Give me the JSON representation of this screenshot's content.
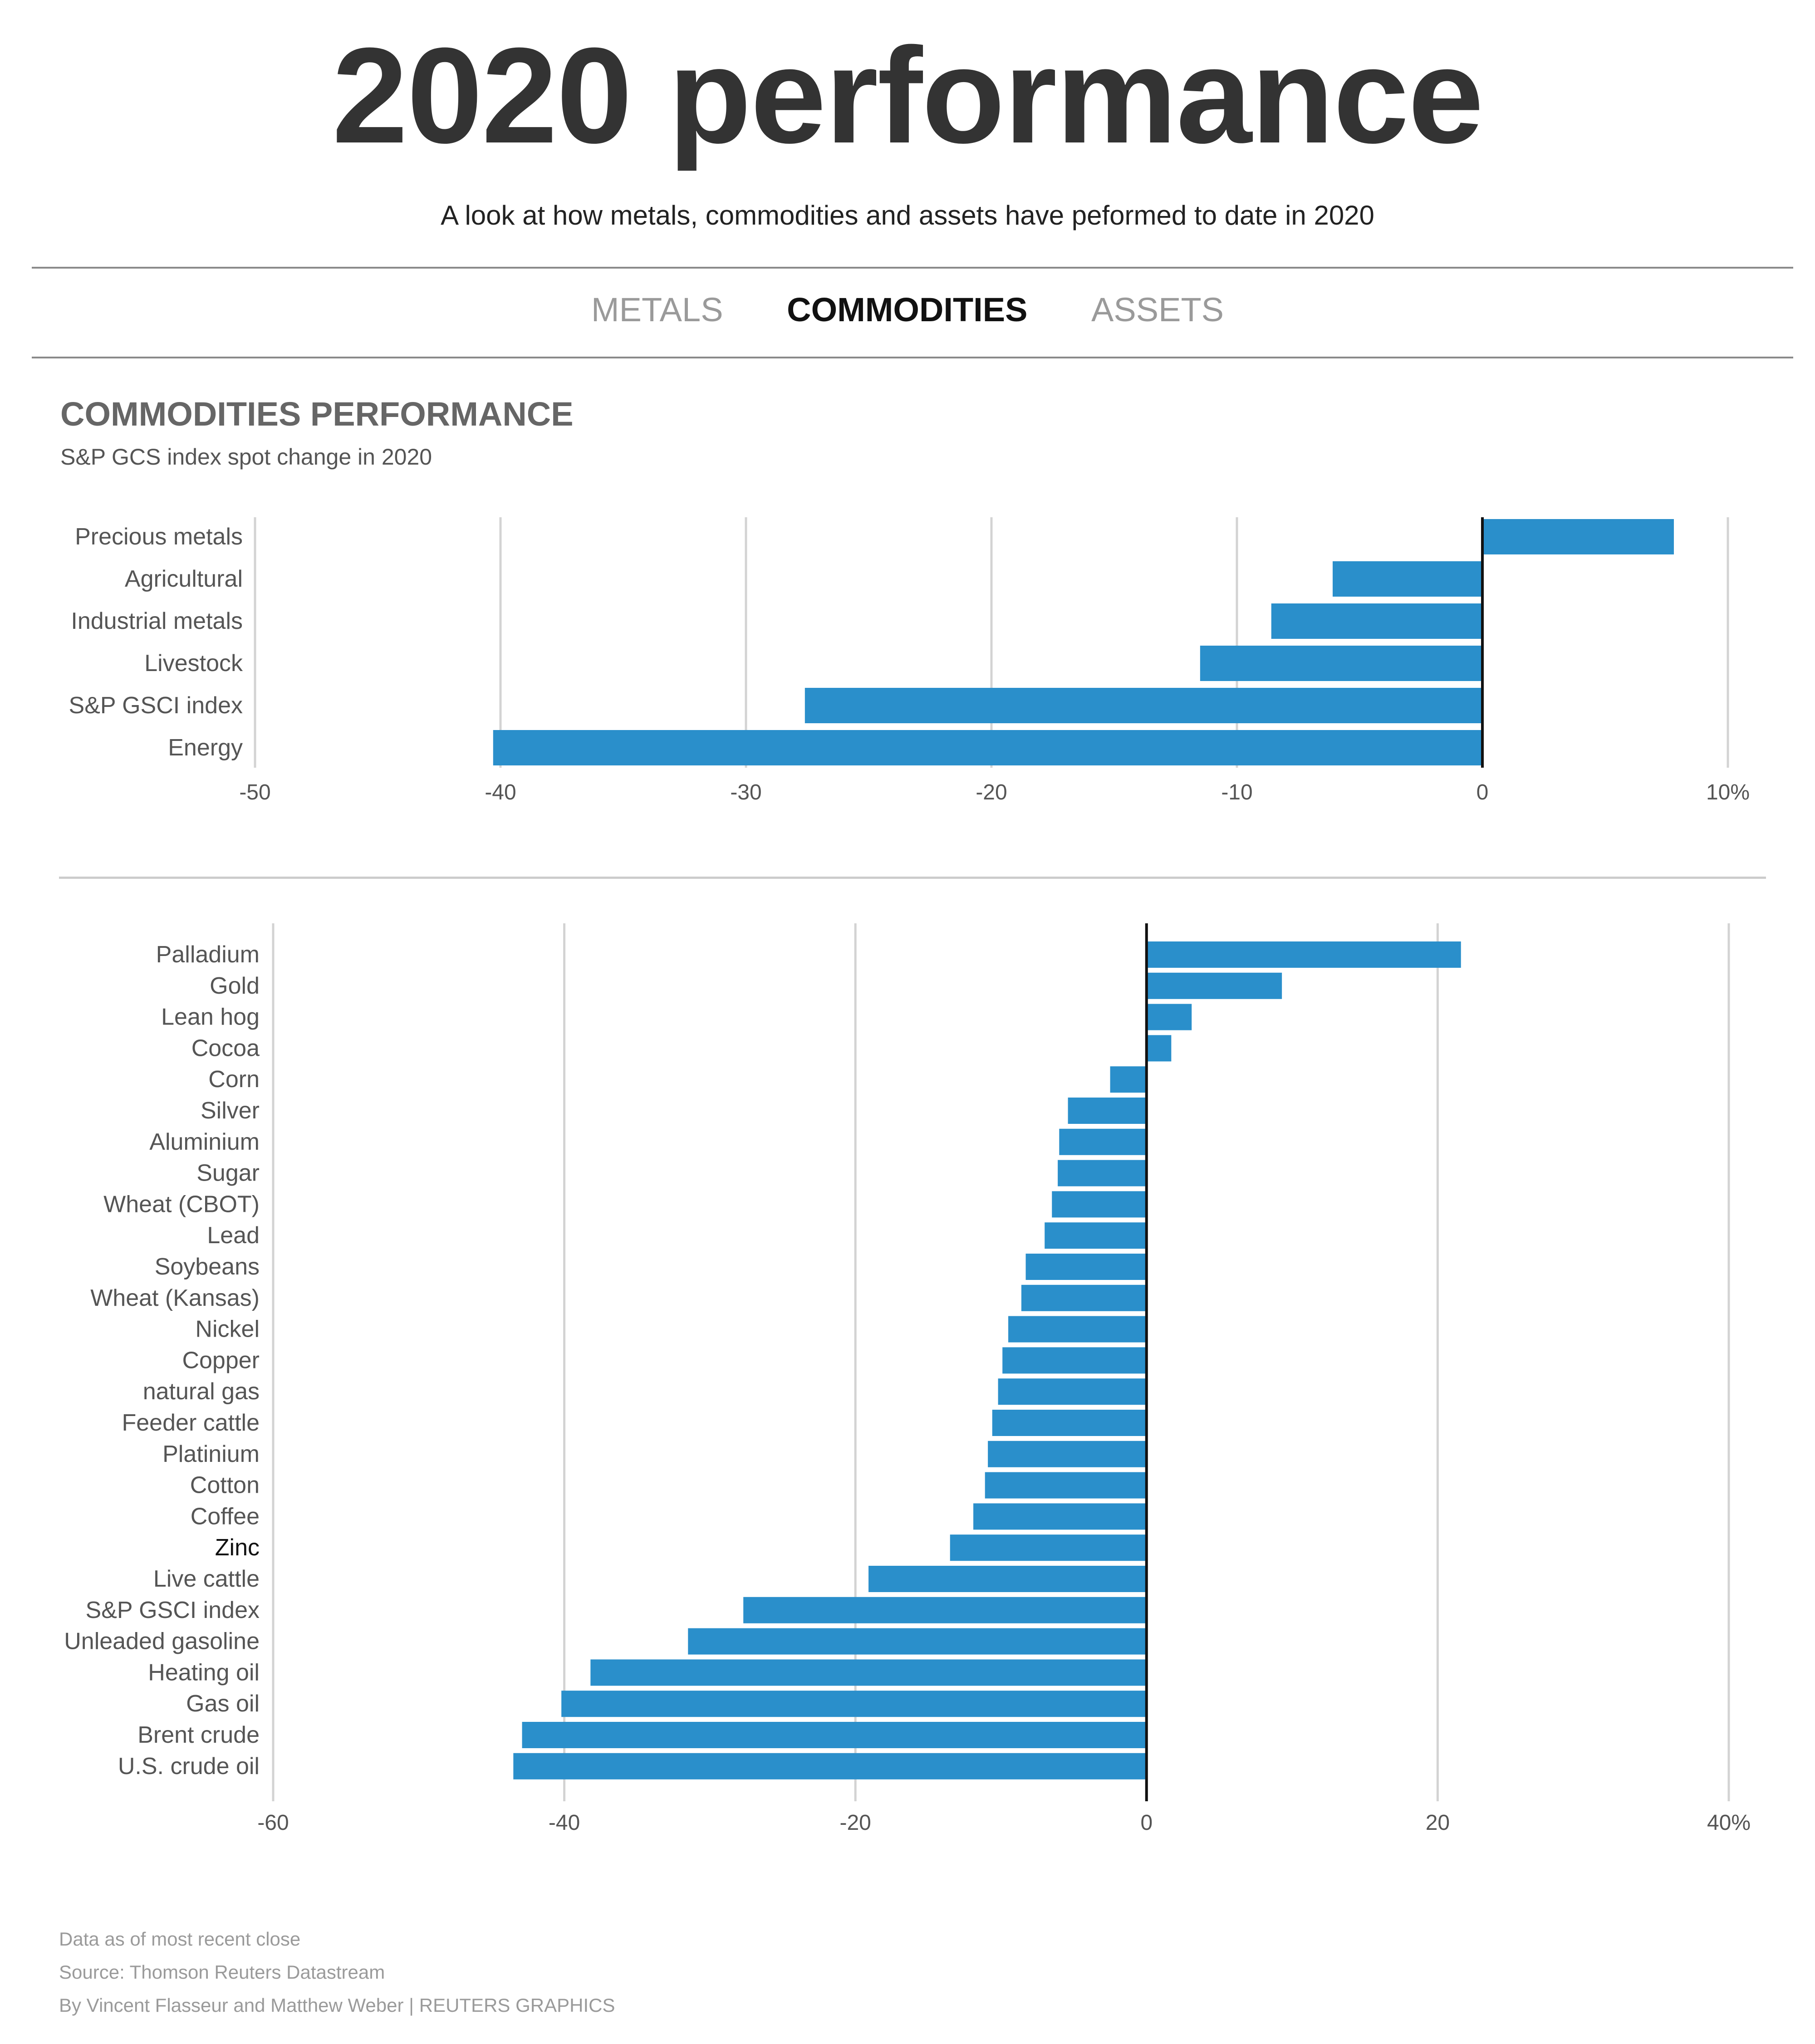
{
  "header": {
    "title": "2020 performance",
    "subtitle": "A look at how metals, commodities and assets have peformed to date in 2020"
  },
  "tabs": [
    {
      "label": "METALS",
      "active": false
    },
    {
      "label": "COMMODITIES",
      "active": true
    },
    {
      "label": "ASSETS",
      "active": false
    }
  ],
  "section": {
    "title": "COMMODITIES PERFORMANCE",
    "subtitle": "S&P GCS index spot change in 2020"
  },
  "colors": {
    "bar": "#2a8fcb",
    "gridline": "#d3d3d3",
    "zero_line": "#111111",
    "divider": "#cccccc",
    "highlight_label": "#111111"
  },
  "chart_data": [
    {
      "type": "bar",
      "orientation": "horizontal",
      "categories": [
        "Precious metals",
        "Agricultural",
        "Industrial metals",
        "Livestock",
        "S&P GSCI index",
        "Energy"
      ],
      "values": [
        7.8,
        -6.1,
        -8.6,
        -11.5,
        -27.6,
        -40.3
      ],
      "xlim": [
        -50,
        10
      ],
      "ticks": [
        -50,
        -40,
        -30,
        -20,
        -10,
        0,
        10
      ],
      "tick_labels": [
        "-50",
        "-40",
        "-30",
        "-20",
        "-10",
        "0",
        "10%"
      ],
      "grid": true
    },
    {
      "type": "bar",
      "orientation": "horizontal",
      "categories": [
        "Palladium",
        "Gold",
        "Lean hog",
        "Cocoa",
        "Corn",
        "Silver",
        "Aluminium",
        "Sugar",
        "Wheat (CBOT)",
        "Lead",
        "Soybeans",
        "Wheat (Kansas)",
        "Nickel",
        "Copper",
        "natural gas",
        "Feeder cattle",
        "Platinium",
        "Cotton",
        "Coffee",
        "Zinc",
        "Live cattle",
        "S&P GSCI index",
        "Unleaded gasoline",
        "Heating oil",
        "Gas oil",
        "Brent crude",
        "U.S. crude oil"
      ],
      "values": [
        21.6,
        9.3,
        3.1,
        1.7,
        -2.5,
        -5.4,
        -6.0,
        -6.1,
        -6.5,
        -7.0,
        -8.3,
        -8.6,
        -9.5,
        -9.9,
        -10.2,
        -10.6,
        -10.9,
        -11.1,
        -11.9,
        -13.5,
        -19.1,
        -27.7,
        -31.5,
        -38.2,
        -40.2,
        -42.9,
        -43.5
      ],
      "highlight": "Zinc",
      "xlim": [
        -60,
        40
      ],
      "ticks": [
        -60,
        -40,
        -20,
        0,
        20,
        40
      ],
      "tick_labels": [
        "-60",
        "-40",
        "-20",
        "0",
        "20",
        "40%"
      ],
      "grid": true
    }
  ],
  "footer": {
    "note": "Data as of most recent close",
    "source": "Source: Thomson Reuters Datastream",
    "credit": "By Vincent Flasseur and Matthew Weber | REUTERS GRAPHICS"
  }
}
